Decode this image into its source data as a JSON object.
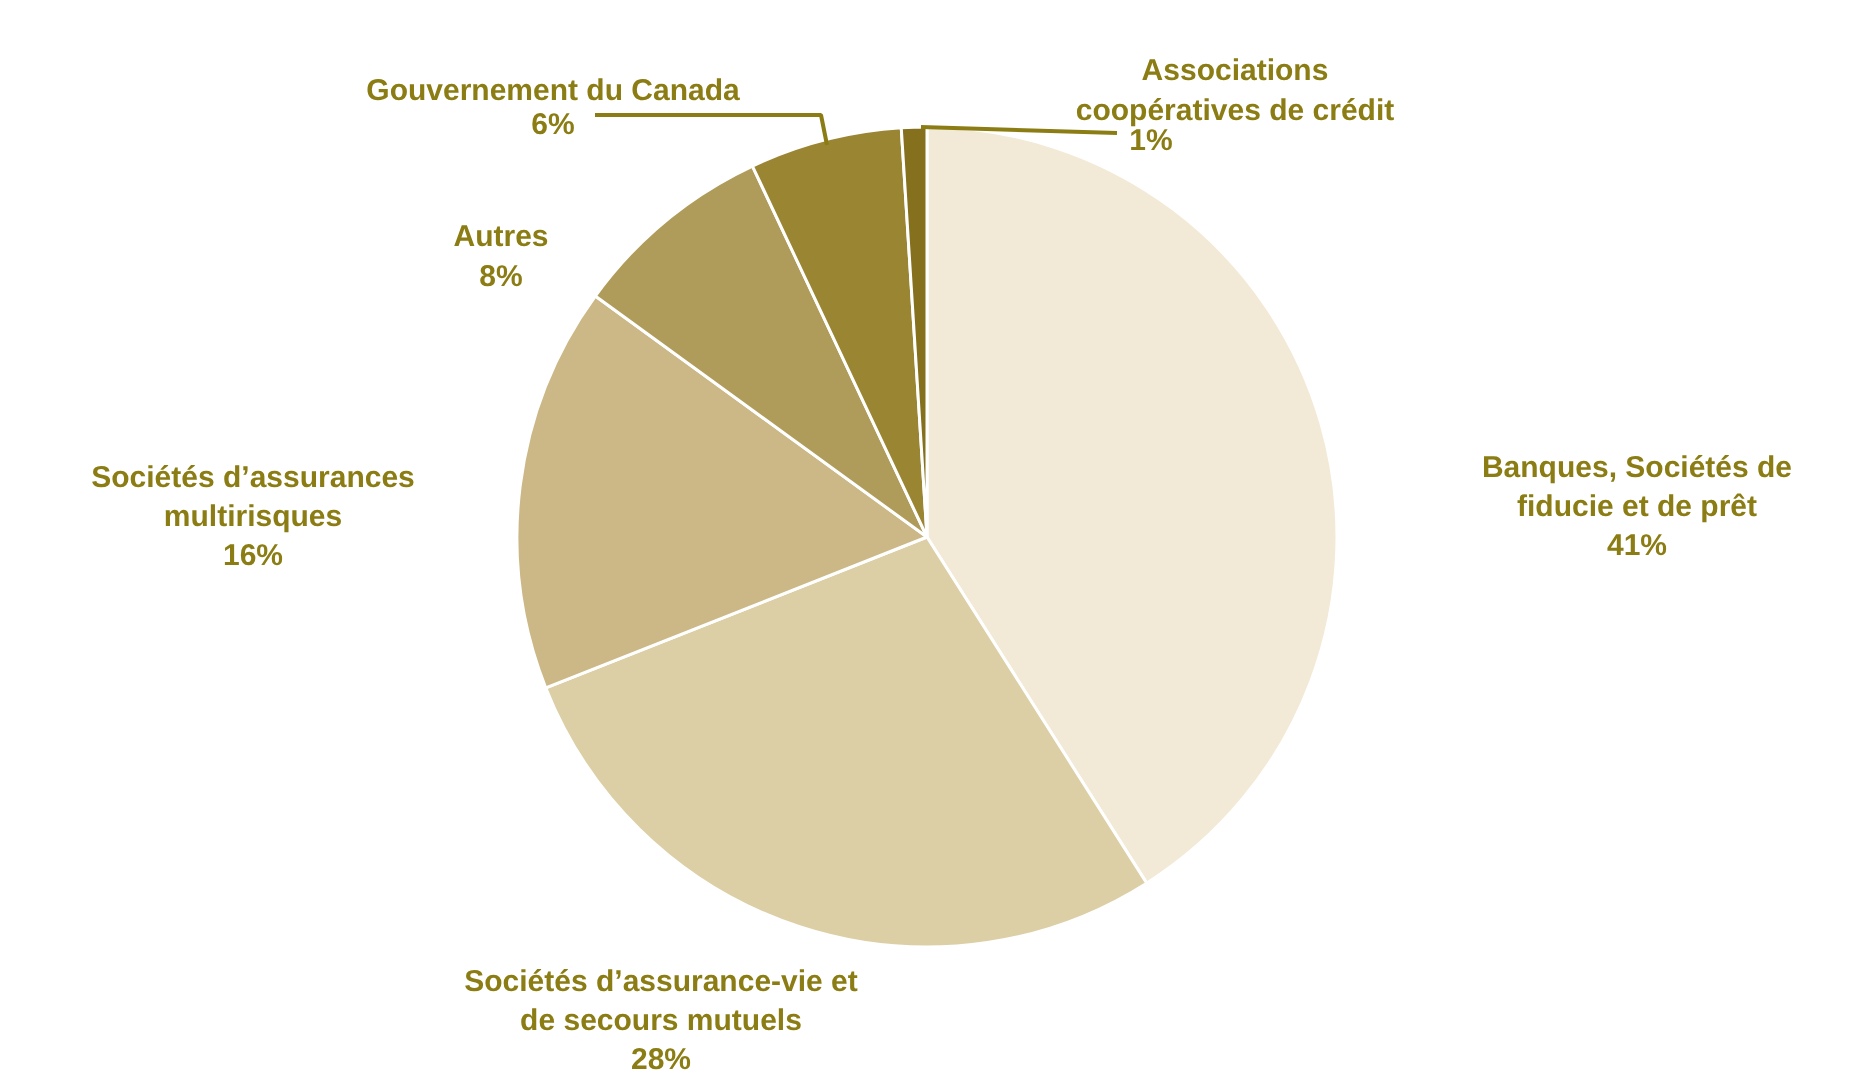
{
  "chart_data": {
    "type": "pie",
    "categories": [
      "Banques, Sociétés de fiducie et de prêt",
      "Sociétés d’assurance-vie et de secours mutuels",
      "Sociétés d’assurances multirisques",
      "Autres",
      "Gouvernement du Canada",
      "Associations coopératives de crédit"
    ],
    "values": [
      41,
      28,
      16,
      8,
      6,
      1
    ],
    "colors": [
      "#f2ead6",
      "#dccfa6",
      "#cbb886",
      "#b09c5a",
      "#9a8532",
      "#85701e"
    ],
    "value_labels": [
      "41%",
      "28%",
      "16%",
      "8%",
      "6%",
      "1%"
    ]
  }
}
